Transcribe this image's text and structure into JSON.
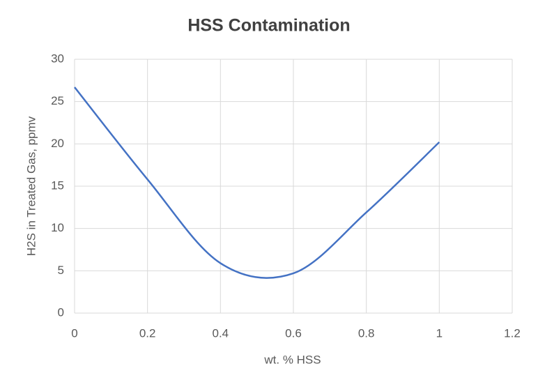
{
  "chart_data": {
    "type": "line",
    "title": "HSS Contamination",
    "x_label": "wt. % HSS",
    "y_label": "H2S in Treated Gas, ppmv",
    "x": [
      0,
      0.2,
      0.4,
      0.6,
      0.8,
      1
    ],
    "series": [
      {
        "name": "H2S",
        "color": "#4472c4",
        "values": [
          26.7,
          15.8,
          5.9,
          4.7,
          11.9,
          20.2
        ]
      }
    ],
    "xlim": [
      0,
      1.2
    ],
    "xticks": [
      0,
      0.2,
      0.4,
      0.6,
      0.8,
      1,
      1.2
    ],
    "ylim": [
      0,
      30
    ],
    "yticks": [
      0,
      5,
      10,
      15,
      20,
      25,
      30
    ],
    "grid": true
  }
}
